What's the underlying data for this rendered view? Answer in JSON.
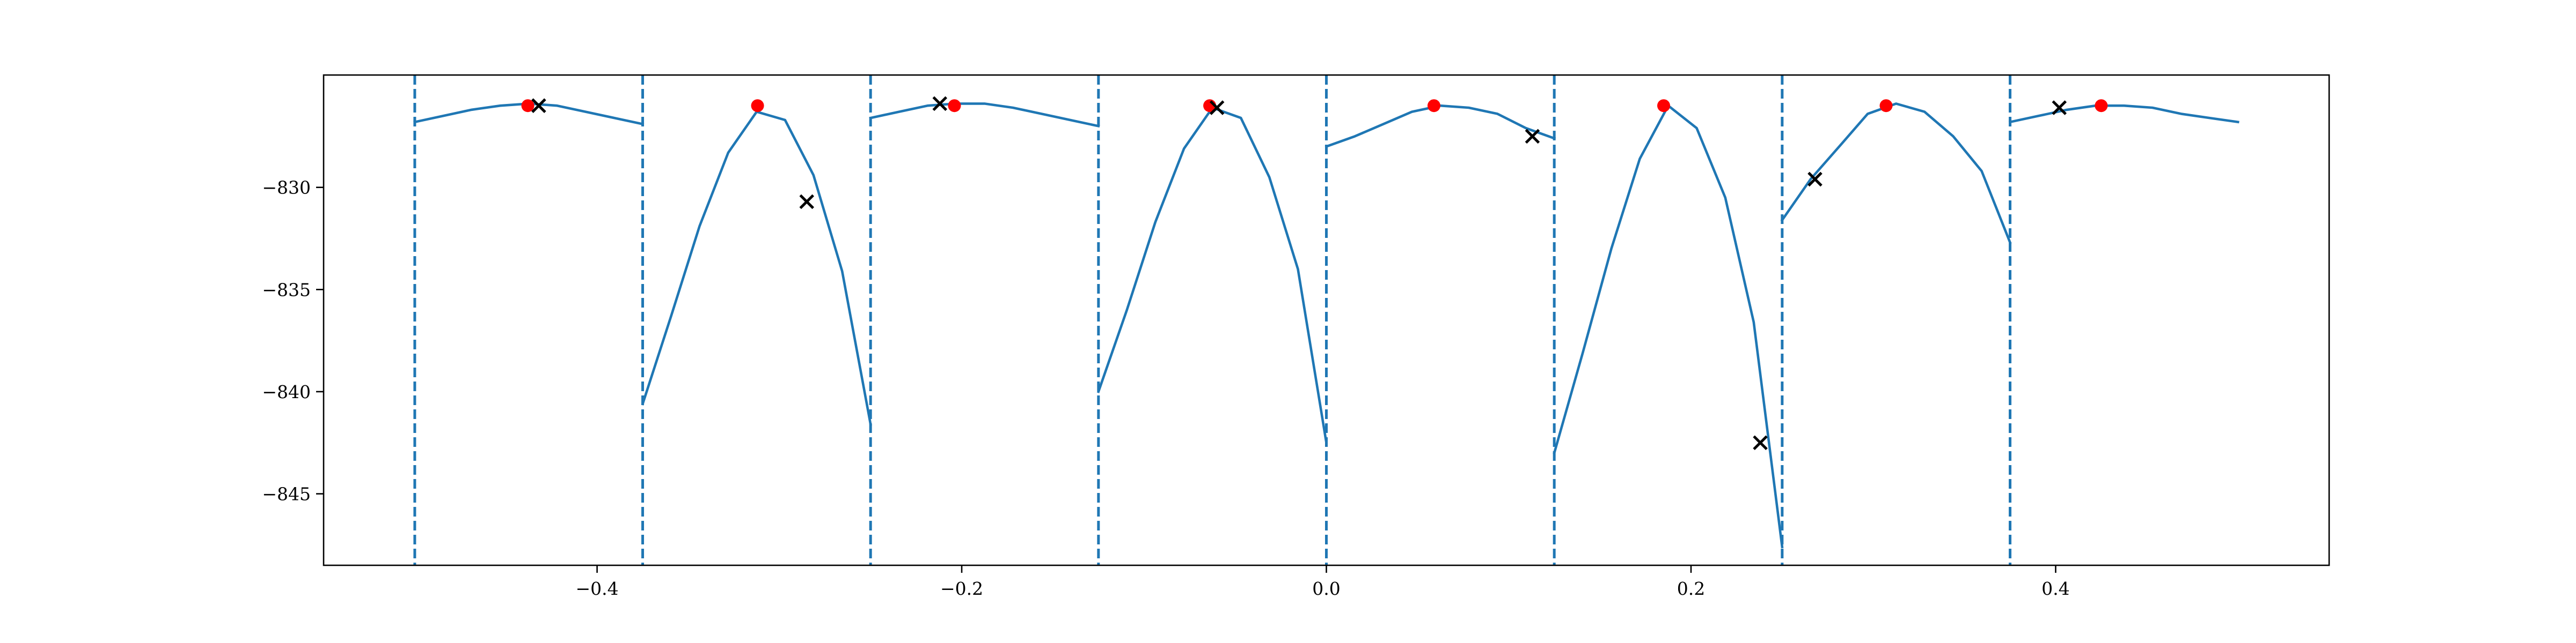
{
  "chart_data": {
    "type": "line",
    "title": "",
    "xlabel": "",
    "ylabel": "",
    "xlim": [
      -0.55,
      0.55
    ],
    "ylim": [
      -848.5,
      -824.5
    ],
    "grid": false,
    "x_ticks": [
      -0.4,
      -0.2,
      0.0,
      0.2,
      0.4
    ],
    "x_tick_labels": [
      "−0.4",
      "−0.2",
      "0.0",
      "0.2",
      "0.4"
    ],
    "y_ticks": [
      -830,
      -835,
      -840,
      -845
    ],
    "y_tick_labels": [
      "−830",
      "−835",
      "−840",
      "−845"
    ],
    "vlines": [
      -0.5,
      -0.375,
      -0.25,
      -0.125,
      0.0,
      0.125,
      0.25,
      0.375
    ],
    "colors": {
      "line": "#1f77b4",
      "peak_marker": "#ff0000",
      "cross_marker": "#000000",
      "axes": "#000000"
    },
    "series": [
      {
        "x": [
          -0.5,
          -0.4844,
          -0.4688,
          -0.4531,
          -0.4375,
          -0.4219,
          -0.4063,
          -0.3906,
          -0.375
        ],
        "y": [
          -826.8,
          -826.5,
          -826.2,
          -826.0,
          -825.9,
          -826.0,
          -826.3,
          -826.6,
          -826.9
        ]
      },
      {
        "x": [
          -0.375,
          -0.3594,
          -0.3438,
          -0.3281,
          -0.3125,
          -0.2969,
          -0.2813,
          -0.2656,
          -0.25
        ],
        "y": [
          -840.6,
          -836.3,
          -831.9,
          -828.3,
          -826.3,
          -826.7,
          -829.4,
          -834.1,
          -841.6
        ]
      },
      {
        "x": [
          -0.25,
          -0.2344,
          -0.2188,
          -0.2031,
          -0.1875,
          -0.1719,
          -0.1563,
          -0.1406,
          -0.125
        ],
        "y": [
          -826.6,
          -826.3,
          -826.0,
          -825.9,
          -825.9,
          -826.1,
          -826.4,
          -826.7,
          -827.0
        ]
      },
      {
        "x": [
          -0.125,
          -0.1094,
          -0.0938,
          -0.0781,
          -0.0625,
          -0.0469,
          -0.0313,
          -0.0156,
          0.0
        ],
        "y": [
          -840.0,
          -836.0,
          -831.7,
          -828.1,
          -826.1,
          -826.6,
          -829.5,
          -834.0,
          -842.5
        ]
      },
      {
        "x": [
          0.0,
          0.0156,
          0.0313,
          0.0469,
          0.0625,
          0.0781,
          0.0938,
          0.1094,
          0.125
        ],
        "y": [
          -828.0,
          -827.5,
          -826.9,
          -826.3,
          -826.0,
          -826.1,
          -826.4,
          -827.1,
          -827.6
        ]
      },
      {
        "x": [
          0.125,
          0.1406,
          0.1563,
          0.1719,
          0.1875,
          0.2031,
          0.2188,
          0.2344,
          0.25
        ],
        "y": [
          -843.0,
          -838.1,
          -833.0,
          -828.6,
          -826.0,
          -827.1,
          -830.5,
          -836.6,
          -847.6
        ]
      },
      {
        "x": [
          0.25,
          0.2656,
          0.2813,
          0.2969,
          0.3125,
          0.3281,
          0.3438,
          0.3594,
          0.375
        ],
        "y": [
          -831.6,
          -829.6,
          -828.0,
          -826.4,
          -825.9,
          -826.3,
          -827.5,
          -829.2,
          -832.7
        ]
      },
      {
        "x": [
          0.375,
          0.3906,
          0.4063,
          0.4219,
          0.4375,
          0.4531,
          0.4688,
          0.4844,
          0.5
        ],
        "y": [
          -826.8,
          -826.5,
          -826.2,
          -826.0,
          -826.0,
          -826.1,
          -826.4,
          -826.6,
          -826.8
        ]
      }
    ],
    "peak_points": [
      {
        "x": -0.438,
        "y": -826.0
      },
      {
        "x": -0.312,
        "y": -826.0
      },
      {
        "x": -0.204,
        "y": -826.0
      },
      {
        "x": -0.064,
        "y": -826.0
      },
      {
        "x": 0.059,
        "y": -826.0
      },
      {
        "x": 0.185,
        "y": -826.0
      },
      {
        "x": 0.307,
        "y": -826.0
      },
      {
        "x": 0.425,
        "y": -826.0
      }
    ],
    "cross_points": [
      {
        "x": -0.432,
        "y": -826.0
      },
      {
        "x": -0.285,
        "y": -830.7
      },
      {
        "x": -0.212,
        "y": -825.9
      },
      {
        "x": -0.06,
        "y": -826.1
      },
      {
        "x": 0.113,
        "y": -827.5
      },
      {
        "x": 0.238,
        "y": -842.5
      },
      {
        "x": 0.268,
        "y": -829.6
      },
      {
        "x": 0.402,
        "y": -826.1
      }
    ]
  }
}
